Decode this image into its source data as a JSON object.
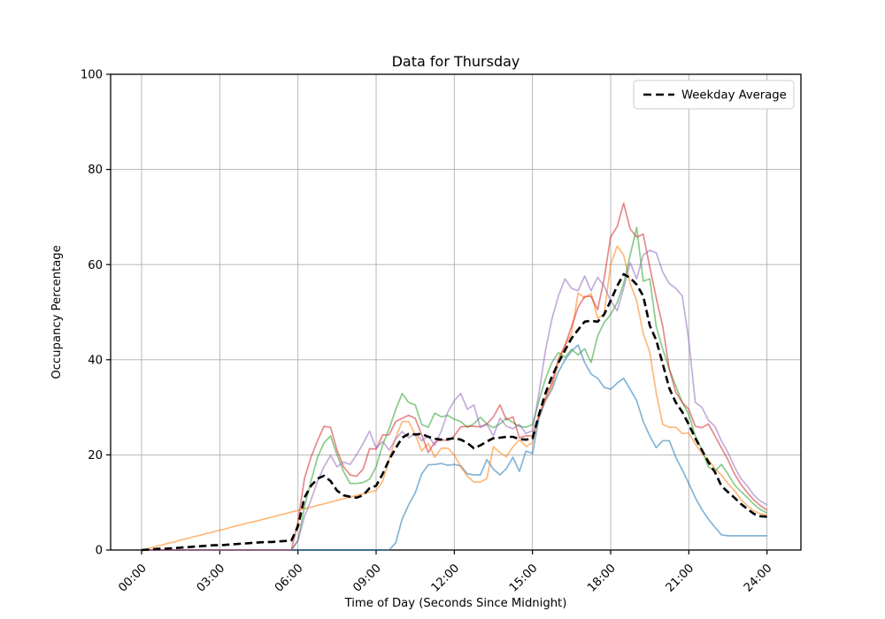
{
  "chart_data": {
    "type": "line",
    "title": "Data for Thursday",
    "xlabel": "Time of Day (Seconds Since Midnight)",
    "ylabel": "Occupancy Percentage",
    "ylim": [
      0,
      100
    ],
    "xlim_hours": [
      0,
      24
    ],
    "grid": true,
    "grid_color": "#b0b0b0",
    "legend_position": "upper right",
    "legend_entries": [
      "Weekday Average"
    ],
    "x_tick_labels": [
      "00:00",
      "03:00",
      "06:00",
      "09:00",
      "12:00",
      "15:00",
      "18:00",
      "21:00",
      "24:00"
    ],
    "x_tick_hours": [
      0,
      3,
      6,
      9,
      12,
      15,
      18,
      21,
      24
    ],
    "y_tick_labels": [
      "0",
      "20",
      "40",
      "60",
      "80",
      "100"
    ],
    "y_tick_values": [
      0,
      20,
      40,
      60,
      80,
      100
    ],
    "x_start_hour": 0,
    "x_interval_minutes": 15,
    "series": [
      {
        "name": "series-blue",
        "color": "#1f77b4",
        "opacity": 0.55,
        "style": "solid",
        "width": 1.7,
        "values": [
          0,
          0,
          0,
          0,
          0,
          0,
          0,
          0,
          0,
          0,
          0,
          0,
          0,
          0,
          0,
          0,
          0,
          0,
          0,
          0,
          0,
          0,
          0,
          0,
          0,
          0,
          0,
          0,
          0,
          0,
          0,
          0,
          0,
          0,
          0,
          0,
          0,
          0,
          0,
          1.5,
          6.5,
          9.5,
          12,
          16,
          17.9,
          18,
          18.2,
          17.8,
          18,
          17.7,
          16,
          15.8,
          15.8,
          19,
          17,
          15.8,
          17.1,
          19.5,
          16.5,
          20.8,
          20.3,
          27.7,
          31.4,
          33.8,
          37.5,
          40,
          41.8,
          43.1,
          39.4,
          37,
          36.1,
          34.2,
          33.8,
          35.1,
          36.1,
          33.8,
          31.4,
          27,
          24,
          21.5,
          23,
          23,
          19.5,
          16.8,
          14,
          11,
          8.5,
          6.5,
          4.8,
          3.2,
          3,
          3,
          3,
          3,
          3,
          3,
          3
        ]
      },
      {
        "name": "series-orange",
        "color": "#ff7f0e",
        "opacity": 0.55,
        "style": "solid",
        "width": 1.7,
        "values": [
          0,
          0.3,
          0.7,
          1,
          1.4,
          1.7,
          2.1,
          2.4,
          2.8,
          3.1,
          3.5,
          3.8,
          4.2,
          4.5,
          4.9,
          5.2,
          5.6,
          5.9,
          6.2,
          6.6,
          6.9,
          7.3,
          7.6,
          8,
          8.3,
          8.7,
          9,
          9.4,
          9.7,
          10.1,
          10.4,
          10.8,
          11.1,
          11.5,
          11.8,
          12.2,
          12.5,
          14.5,
          19,
          23.6,
          27,
          27,
          24.2,
          20.8,
          22.4,
          19.5,
          21.4,
          21.4,
          20,
          17.5,
          15.5,
          14.3,
          14.3,
          15,
          21.7,
          20.5,
          19.6,
          21.7,
          23.2,
          21.8,
          22.5,
          28.8,
          31.5,
          34.4,
          39.4,
          43,
          45.5,
          54,
          53,
          53.9,
          48.7,
          49.6,
          60,
          63.9,
          62,
          56,
          52.4,
          45.5,
          41.6,
          33,
          26.4,
          25.8,
          25.8,
          24.5,
          24.6,
          22.3,
          20.3,
          19,
          17.1,
          15.8,
          14,
          12.5,
          10.6,
          9.3,
          8.2,
          7.6,
          7.4
        ]
      },
      {
        "name": "series-green",
        "color": "#2ca02c",
        "opacity": 0.55,
        "style": "solid",
        "width": 1.7,
        "values": [
          0,
          0,
          0,
          0,
          0,
          0,
          0,
          0,
          0,
          0,
          0,
          0,
          0,
          0,
          0,
          0,
          0,
          0,
          0,
          0,
          0,
          0,
          0,
          0,
          2,
          9,
          14.5,
          19.5,
          22.5,
          24,
          20,
          16.5,
          14,
          14,
          14.2,
          14.9,
          17.5,
          22.1,
          25.5,
          29.5,
          32.9,
          31,
          30.5,
          26.4,
          25.8,
          28.8,
          28,
          28.3,
          27.5,
          27,
          25.8,
          26.5,
          27.9,
          26.5,
          25.7,
          26.5,
          27.7,
          26.8,
          26,
          25.8,
          26.4,
          31.4,
          36,
          39.5,
          41.5,
          40.5,
          42.2,
          41,
          42.3,
          39.4,
          45,
          47.8,
          49.5,
          52,
          56,
          62,
          67.8,
          56.5,
          57,
          47,
          42.2,
          38,
          34.5,
          31,
          28.5,
          24,
          21,
          17.5,
          16.5,
          18,
          16,
          13.7,
          12.3,
          11,
          9.6,
          8.5,
          7.8
        ]
      },
      {
        "name": "series-red",
        "color": "#d62728",
        "opacity": 0.55,
        "style": "solid",
        "width": 1.7,
        "values": [
          0,
          0,
          0,
          0,
          0,
          0,
          0,
          0,
          0,
          0,
          0,
          0,
          0,
          0,
          0,
          0,
          0,
          0,
          0,
          0,
          0,
          0,
          0,
          0,
          6,
          15,
          19.5,
          23,
          26,
          25.8,
          21,
          17.5,
          15.8,
          15.5,
          17,
          21.3,
          21.2,
          24.2,
          24.2,
          27,
          27.7,
          28.3,
          27.7,
          24.2,
          20.5,
          22.7,
          23.2,
          23,
          24,
          25.9,
          26,
          26,
          25.9,
          26.5,
          28,
          30.5,
          27.4,
          28,
          23.6,
          24,
          24,
          28,
          32,
          35.1,
          40.3,
          43,
          47,
          51,
          53.3,
          53.3,
          50.5,
          57,
          65.8,
          68,
          72.9,
          67.5,
          65.8,
          66.4,
          59.5,
          53,
          47,
          38,
          33.2,
          31,
          29.6,
          26,
          25.7,
          26.5,
          24,
          21.5,
          19,
          16,
          13.8,
          12,
          10.5,
          9.3,
          8.4
        ]
      },
      {
        "name": "series-purple",
        "color": "#9467bd",
        "opacity": 0.55,
        "style": "solid",
        "width": 1.7,
        "values": [
          0,
          0,
          0,
          0,
          0,
          0,
          0,
          0,
          0,
          0,
          0,
          0,
          0,
          0,
          0,
          0,
          0,
          0,
          0,
          0,
          0,
          0,
          0,
          0,
          2,
          7,
          10.5,
          14.5,
          17.5,
          19.9,
          17.5,
          18.5,
          18,
          20,
          22.4,
          25,
          21.4,
          22.8,
          21,
          23.3,
          24.9,
          23.6,
          24.5,
          23,
          24,
          22,
          25,
          29,
          31.4,
          32.9,
          29.6,
          30.5,
          25.8,
          26.4,
          24,
          27.7,
          26,
          25.5,
          26.4,
          24.5,
          25.1,
          33,
          42,
          48.7,
          53.5,
          57,
          55,
          54.5,
          57.6,
          54.5,
          57.3,
          55.5,
          52.4,
          50.3,
          55,
          60.4,
          57,
          62,
          63,
          62.5,
          58.4,
          56,
          55,
          53.4,
          44,
          31,
          30,
          27.3,
          26,
          23,
          20.5,
          17.5,
          15,
          13.4,
          11.5,
          10.3,
          9.5
        ]
      },
      {
        "name": "weekday-average",
        "color": "#000000",
        "opacity": 1,
        "style": "dashed",
        "width": 2.6,
        "values": [
          0,
          0.1,
          0.2,
          0.3,
          0.3,
          0.4,
          0.5,
          0.6,
          0.7,
          0.8,
          0.9,
          1,
          1,
          1.1,
          1.2,
          1.3,
          1.4,
          1.5,
          1.6,
          1.7,
          1.7,
          1.8,
          1.9,
          2,
          5,
          11,
          13.5,
          15,
          15.6,
          14.5,
          12.5,
          11.5,
          11.2,
          11,
          11.5,
          13,
          13.5,
          16,
          19,
          21.4,
          23.6,
          24.4,
          24.3,
          24.4,
          23.8,
          23.4,
          23.2,
          23.3,
          23.5,
          23.2,
          22.5,
          21.4,
          22,
          22.8,
          23.5,
          23.6,
          23.8,
          23.8,
          23.3,
          23.2,
          23.4,
          28.5,
          33,
          36.5,
          39.4,
          42,
          44.5,
          46.3,
          48,
          48.2,
          48,
          49.5,
          52.4,
          55.5,
          58,
          57.2,
          55.8,
          53.4,
          47.2,
          44.1,
          39.1,
          34,
          31,
          29,
          26.4,
          23.5,
          21,
          18.5,
          16.4,
          13.5,
          12.2,
          11,
          9.7,
          8.6,
          7.6,
          7.1,
          7
        ]
      }
    ]
  }
}
